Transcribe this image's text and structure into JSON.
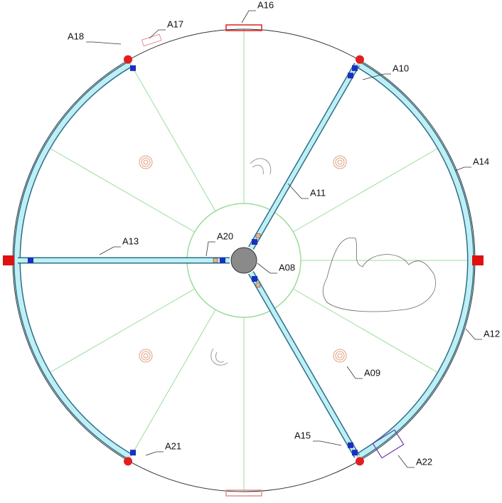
{
  "labels": [
    "A08",
    "A09",
    "A10",
    "A11",
    "A12",
    "A13",
    "A14",
    "A15",
    "A16",
    "A17",
    "A18",
    "A20",
    "A21",
    "A22"
  ]
}
